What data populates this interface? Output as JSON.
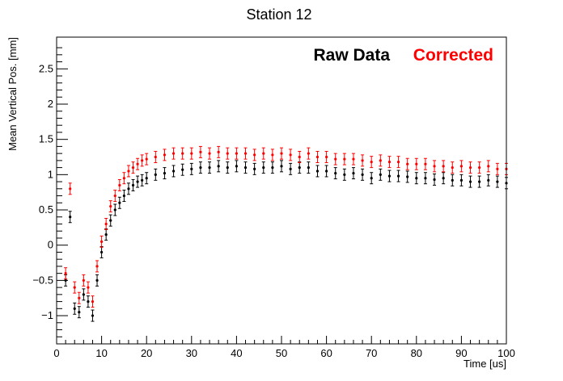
{
  "chart_data": {
    "type": "scatter",
    "title": "Station 12",
    "xlabel": "Time [us]",
    "ylabel": "Mean Vertical Pos. [mm]",
    "xlim": [
      0,
      100
    ],
    "ylim": [
      -1.4,
      2.95
    ],
    "x_ticks": [
      0,
      10,
      20,
      30,
      40,
      50,
      60,
      70,
      80,
      90,
      100
    ],
    "x_tick_labels": [
      "0",
      "10",
      "20",
      "30",
      "40",
      "50",
      "60",
      "70",
      "80",
      "90",
      "100"
    ],
    "y_ticks": [
      -1,
      -0.5,
      0,
      0.5,
      1,
      1.5,
      2,
      2.5
    ],
    "y_tick_labels": [
      "−1",
      "−0.5",
      "0",
      "0.5",
      "1",
      "1.5",
      "2",
      "2.5"
    ],
    "grid": false,
    "legend_position": "top-right",
    "series": [
      {
        "name": "Raw Data",
        "color": "#000000",
        "x": [
          2,
          3,
          4,
          5,
          6,
          7,
          8,
          9,
          10,
          11,
          12,
          13,
          14,
          15,
          16,
          17,
          18,
          19,
          20,
          22,
          24,
          26,
          28,
          30,
          32,
          34,
          36,
          38,
          40,
          42,
          44,
          46,
          48,
          50,
          52,
          54,
          56,
          58,
          60,
          62,
          64,
          66,
          68,
          70,
          72,
          74,
          76,
          78,
          80,
          82,
          84,
          86,
          88,
          90,
          92,
          94,
          96,
          98,
          100
        ],
        "y": [
          -0.5,
          0.4,
          -0.9,
          -0.95,
          -0.7,
          -0.8,
          -1.0,
          -0.5,
          -0.1,
          0.15,
          0.35,
          0.5,
          0.6,
          0.7,
          0.8,
          0.85,
          0.9,
          0.92,
          0.95,
          1.0,
          1.02,
          1.05,
          1.07,
          1.08,
          1.1,
          1.1,
          1.12,
          1.1,
          1.12,
          1.1,
          1.08,
          1.1,
          1.1,
          1.12,
          1.08,
          1.1,
          1.1,
          1.05,
          1.05,
          1.02,
          1.0,
          1.02,
          1.0,
          0.95,
          1.0,
          0.98,
          0.98,
          0.97,
          0.95,
          0.95,
          0.93,
          0.95,
          0.92,
          0.92,
          0.9,
          0.9,
          0.92,
          0.9,
          0.88
        ],
        "error": 0.08
      },
      {
        "name": "Corrected",
        "color": "#ff0000",
        "x": [
          2,
          3,
          4,
          5,
          6,
          7,
          8,
          9,
          10,
          11,
          12,
          13,
          14,
          15,
          16,
          17,
          18,
          19,
          20,
          22,
          24,
          26,
          28,
          30,
          32,
          34,
          36,
          38,
          40,
          42,
          44,
          46,
          48,
          50,
          52,
          54,
          56,
          58,
          60,
          62,
          64,
          66,
          68,
          70,
          72,
          74,
          76,
          78,
          80,
          82,
          84,
          86,
          88,
          90,
          92,
          94,
          96,
          98,
          100
        ],
        "y": [
          -0.4,
          0.8,
          -0.6,
          -0.75,
          -0.5,
          -0.6,
          -0.8,
          -0.3,
          0.05,
          0.3,
          0.55,
          0.7,
          0.85,
          0.95,
          1.05,
          1.1,
          1.15,
          1.2,
          1.22,
          1.25,
          1.28,
          1.3,
          1.3,
          1.3,
          1.32,
          1.3,
          1.32,
          1.3,
          1.3,
          1.3,
          1.28,
          1.3,
          1.28,
          1.3,
          1.28,
          1.25,
          1.3,
          1.25,
          1.25,
          1.22,
          1.22,
          1.22,
          1.2,
          1.18,
          1.2,
          1.18,
          1.18,
          1.15,
          1.15,
          1.15,
          1.12,
          1.12,
          1.1,
          1.12,
          1.1,
          1.1,
          1.12,
          1.08,
          1.08
        ],
        "error": 0.08
      }
    ]
  }
}
